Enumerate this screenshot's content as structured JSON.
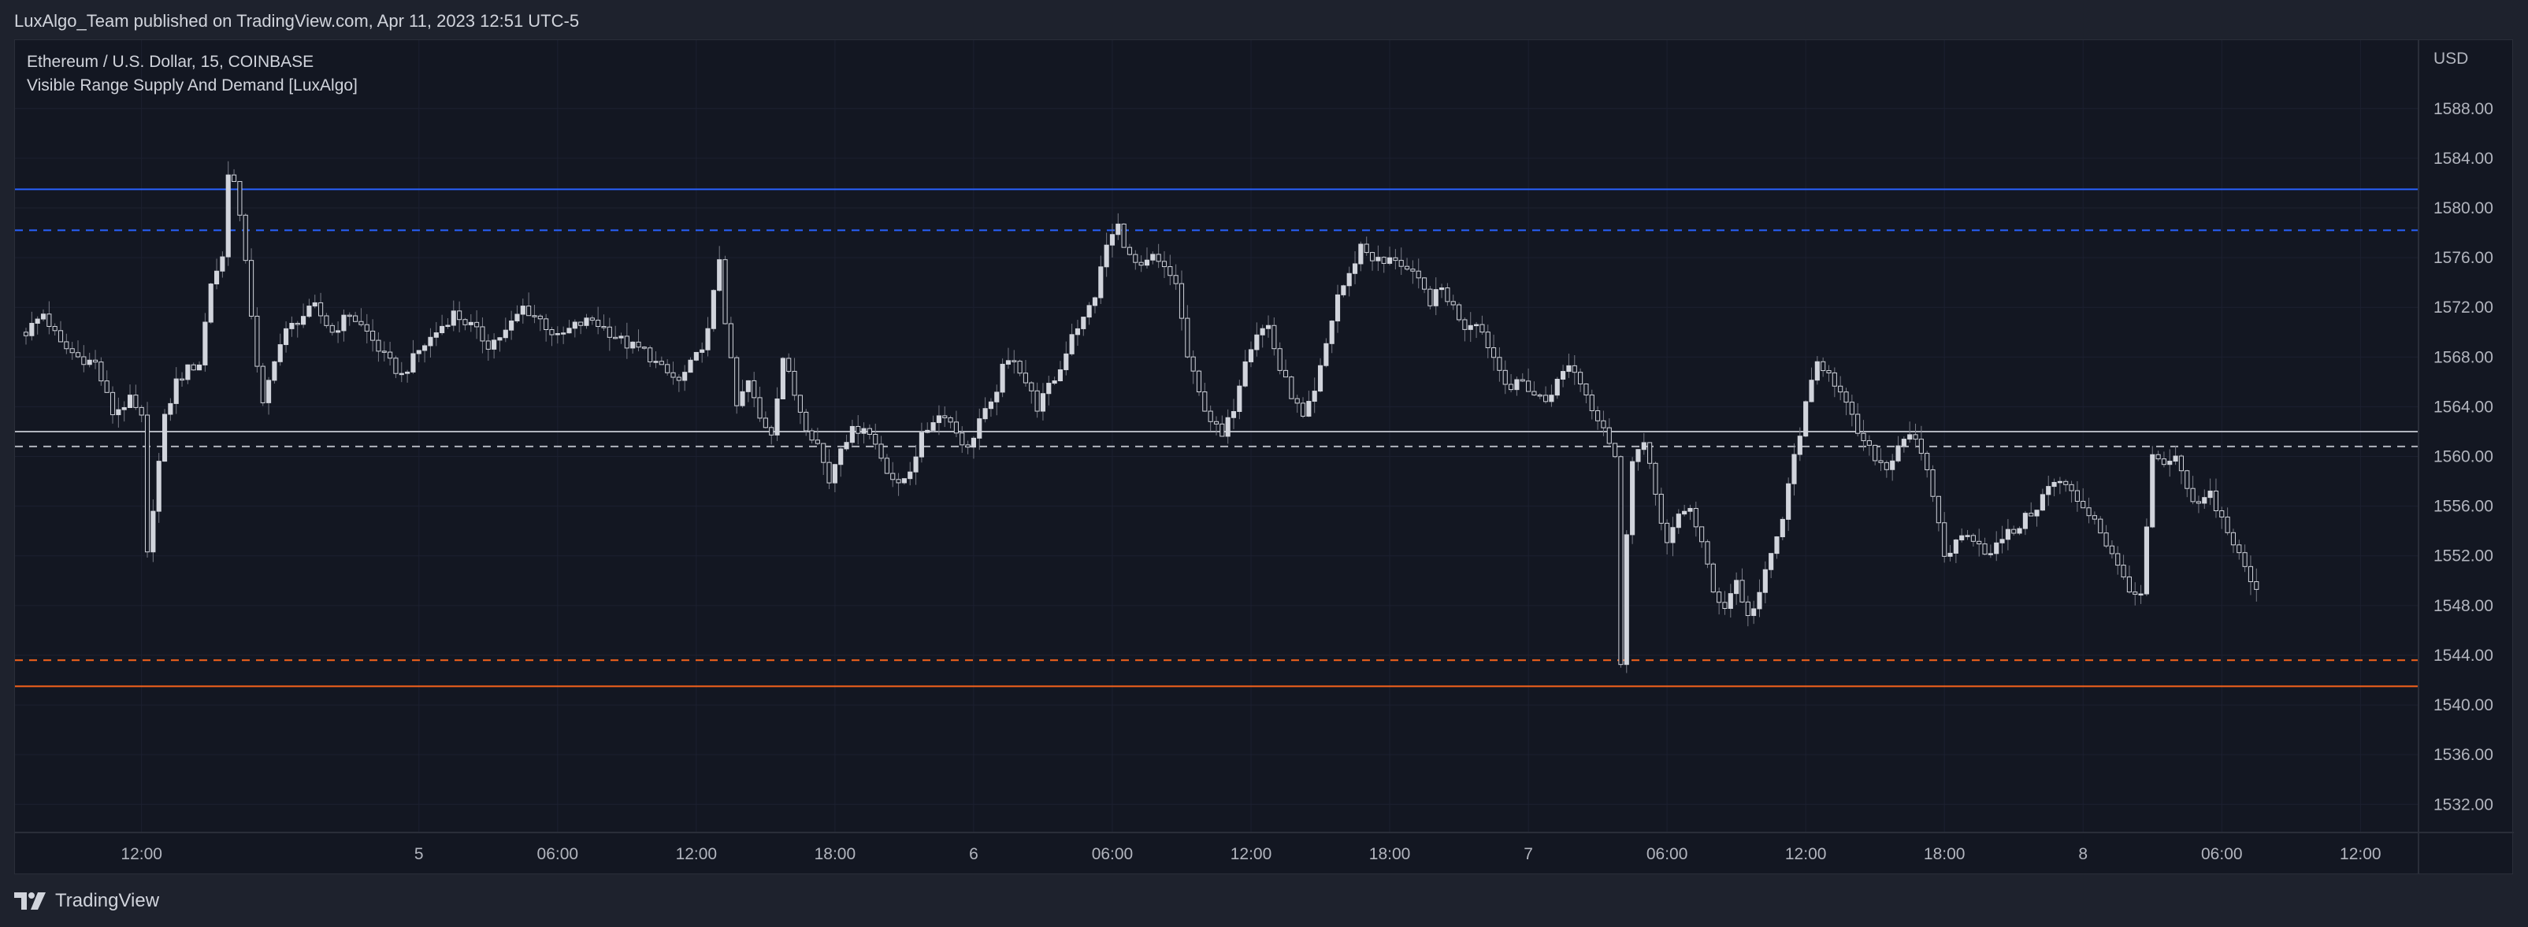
{
  "header": {
    "published_by": "LuxAlgo_Team published on TradingView.com, Apr 11, 2023 12:51 UTC-5"
  },
  "legend": {
    "symbol": "Ethereum / U.S. Dollar, 15, COINBASE",
    "indicator": "Visible Range Supply And Demand [LuxAlgo]"
  },
  "footer": {
    "brand": "TradingView"
  },
  "colors": {
    "background": "#131722",
    "frame": "#1e222d",
    "grid": "#1c2030",
    "candle": "#d1d4dc",
    "supply": "#2962ff",
    "equilibrium": "#b2b5be",
    "demand": "#f7631b"
  },
  "chart_data": {
    "type": "candlestick",
    "currency": "USD",
    "ylim": [
      1529.8,
      1593.5
    ],
    "y_ticks": [
      1532,
      1536,
      1540,
      1544,
      1548,
      1552,
      1556,
      1560,
      1564,
      1568,
      1572,
      1576,
      1580,
      1584,
      1588
    ],
    "x_ticks": [
      {
        "label": "12:00",
        "t": 20
      },
      {
        "label": "5",
        "t": 68
      },
      {
        "label": "06:00",
        "t": 92
      },
      {
        "label": "12:00",
        "t": 116
      },
      {
        "label": "18:00",
        "t": 140
      },
      {
        "label": "6",
        "t": 164
      },
      {
        "label": "06:00",
        "t": 188
      },
      {
        "label": "12:00",
        "t": 212
      },
      {
        "label": "18:00",
        "t": 236
      },
      {
        "label": "7",
        "t": 260
      },
      {
        "label": "06:00",
        "t": 284
      },
      {
        "label": "12:00",
        "t": 308
      },
      {
        "label": "18:00",
        "t": 332
      },
      {
        "label": "8",
        "t": 356
      },
      {
        "label": "06:00",
        "t": 380
      },
      {
        "label": "12:00",
        "t": 404
      }
    ],
    "t_range": [
      0,
      412
    ],
    "zones": [
      {
        "name": "supply",
        "top": 1581.5,
        "avg": 1578.2,
        "color": "#2962ff"
      },
      {
        "name": "equilibrium",
        "top": 1562.0,
        "avg": 1560.8,
        "color": "#b2b5be"
      },
      {
        "name": "demand",
        "top": 1541.5,
        "avg": 1543.6,
        "color": "#f7631b"
      }
    ],
    "close_path": [
      [
        0,
        1570
      ],
      [
        3,
        1571.5
      ],
      [
        6,
        1569
      ],
      [
        9,
        1568
      ],
      [
        12,
        1567.5
      ],
      [
        15,
        1563.5
      ],
      [
        18,
        1564.5
      ],
      [
        20,
        1563
      ],
      [
        21,
        1552
      ],
      [
        22,
        1556
      ],
      [
        24,
        1563
      ],
      [
        26,
        1566
      ],
      [
        28,
        1567
      ],
      [
        30,
        1567.5
      ],
      [
        32,
        1574
      ],
      [
        34,
        1576
      ],
      [
        35,
        1583
      ],
      [
        36,
        1582
      ],
      [
        38,
        1576
      ],
      [
        40,
        1567
      ],
      [
        41,
        1564
      ],
      [
        43,
        1568
      ],
      [
        45,
        1570
      ],
      [
        47,
        1571
      ],
      [
        50,
        1572
      ],
      [
        53,
        1570
      ],
      [
        56,
        1571.5
      ],
      [
        59,
        1570
      ],
      [
        62,
        1568
      ],
      [
        65,
        1566.5
      ],
      [
        68,
        1568.5
      ],
      [
        71,
        1570
      ],
      [
        74,
        1571.5
      ],
      [
        77,
        1570.5
      ],
      [
        80,
        1569
      ],
      [
        83,
        1570
      ],
      [
        86,
        1572
      ],
      [
        89,
        1571
      ],
      [
        92,
        1569.5
      ],
      [
        95,
        1570.5
      ],
      [
        98,
        1571
      ],
      [
        101,
        1570
      ],
      [
        104,
        1569
      ],
      [
        107,
        1568.5
      ],
      [
        110,
        1567
      ],
      [
        113,
        1566
      ],
      [
        116,
        1568
      ],
      [
        118,
        1570
      ],
      [
        120,
        1576
      ],
      [
        121,
        1571
      ],
      [
        123,
        1564
      ],
      [
        125,
        1566
      ],
      [
        127,
        1563
      ],
      [
        129,
        1562
      ],
      [
        131,
        1568
      ],
      [
        133,
        1565
      ],
      [
        135,
        1562.5
      ],
      [
        137,
        1561
      ],
      [
        139,
        1558
      ],
      [
        141,
        1561
      ],
      [
        143,
        1562
      ],
      [
        145,
        1562.5
      ],
      [
        147,
        1561
      ],
      [
        149,
        1559
      ],
      [
        151,
        1557.5
      ],
      [
        153,
        1559
      ],
      [
        155,
        1561.5
      ],
      [
        157,
        1563
      ],
      [
        159,
        1563.5
      ],
      [
        161,
        1562
      ],
      [
        163,
        1560.5
      ],
      [
        165,
        1563
      ],
      [
        167,
        1564
      ],
      [
        169,
        1567
      ],
      [
        171,
        1568
      ],
      [
        173,
        1566
      ],
      [
        175,
        1564
      ],
      [
        177,
        1565.5
      ],
      [
        179,
        1567
      ],
      [
        181,
        1570
      ],
      [
        183,
        1571
      ],
      [
        185,
        1573
      ],
      [
        187,
        1577
      ],
      [
        189,
        1578.5
      ],
      [
        191,
        1576
      ],
      [
        193,
        1575
      ],
      [
        195,
        1576
      ],
      [
        197,
        1575
      ],
      [
        199,
        1574
      ],
      [
        201,
        1568
      ],
      [
        203,
        1565
      ],
      [
        205,
        1563
      ],
      [
        207,
        1561.5
      ],
      [
        209,
        1564
      ],
      [
        211,
        1568
      ],
      [
        213,
        1570
      ],
      [
        215,
        1570.5
      ],
      [
        217,
        1567
      ],
      [
        219,
        1565
      ],
      [
        221,
        1563
      ],
      [
        223,
        1565
      ],
      [
        225,
        1569
      ],
      [
        227,
        1573
      ],
      [
        229,
        1574.5
      ],
      [
        231,
        1577
      ],
      [
        233,
        1576
      ],
      [
        235,
        1575.5
      ],
      [
        237,
        1576
      ],
      [
        239,
        1575
      ],
      [
        241,
        1574
      ],
      [
        243,
        1572.5
      ],
      [
        245,
        1573.5
      ],
      [
        247,
        1572
      ],
      [
        249,
        1570.5
      ],
      [
        251,
        1571
      ],
      [
        253,
        1569
      ],
      [
        255,
        1567
      ],
      [
        257,
        1565.5
      ],
      [
        259,
        1566
      ],
      [
        261,
        1565
      ],
      [
        263,
        1564.5
      ],
      [
        265,
        1566
      ],
      [
        267,
        1567.5
      ],
      [
        269,
        1566
      ],
      [
        271,
        1564
      ],
      [
        273,
        1562.5
      ],
      [
        275,
        1560
      ],
      [
        276,
        1543
      ],
      [
        277,
        1554
      ],
      [
        278,
        1560
      ],
      [
        280,
        1561
      ],
      [
        282,
        1557
      ],
      [
        284,
        1553
      ],
      [
        286,
        1555
      ],
      [
        288,
        1556
      ],
      [
        290,
        1553
      ],
      [
        292,
        1549
      ],
      [
        294,
        1548
      ],
      [
        296,
        1550
      ],
      [
        298,
        1547
      ],
      [
        300,
        1549
      ],
      [
        302,
        1552
      ],
      [
        304,
        1555
      ],
      [
        306,
        1560
      ],
      [
        308,
        1564
      ],
      [
        310,
        1567.5
      ],
      [
        312,
        1567
      ],
      [
        314,
        1565
      ],
      [
        316,
        1563
      ],
      [
        318,
        1561
      ],
      [
        320,
        1560
      ],
      [
        322,
        1559
      ],
      [
        324,
        1561
      ],
      [
        326,
        1562
      ],
      [
        328,
        1560
      ],
      [
        330,
        1557
      ],
      [
        332,
        1552
      ],
      [
        334,
        1553
      ],
      [
        336,
        1554
      ],
      [
        338,
        1553
      ],
      [
        340,
        1552
      ],
      [
        342,
        1553.5
      ],
      [
        344,
        1554
      ],
      [
        346,
        1555
      ],
      [
        348,
        1556
      ],
      [
        350,
        1557.5
      ],
      [
        352,
        1558
      ],
      [
        354,
        1557
      ],
      [
        356,
        1556
      ],
      [
        358,
        1555
      ],
      [
        360,
        1553
      ],
      [
        362,
        1551
      ],
      [
        364,
        1549.5
      ],
      [
        366,
        1548.5
      ],
      [
        368,
        1560
      ],
      [
        370,
        1559
      ],
      [
        372,
        1560
      ],
      [
        374,
        1557
      ],
      [
        376,
        1556
      ],
      [
        378,
        1557
      ],
      [
        380,
        1555
      ],
      [
        382,
        1553
      ],
      [
        384,
        1551
      ],
      [
        386,
        1549
      ]
    ]
  }
}
